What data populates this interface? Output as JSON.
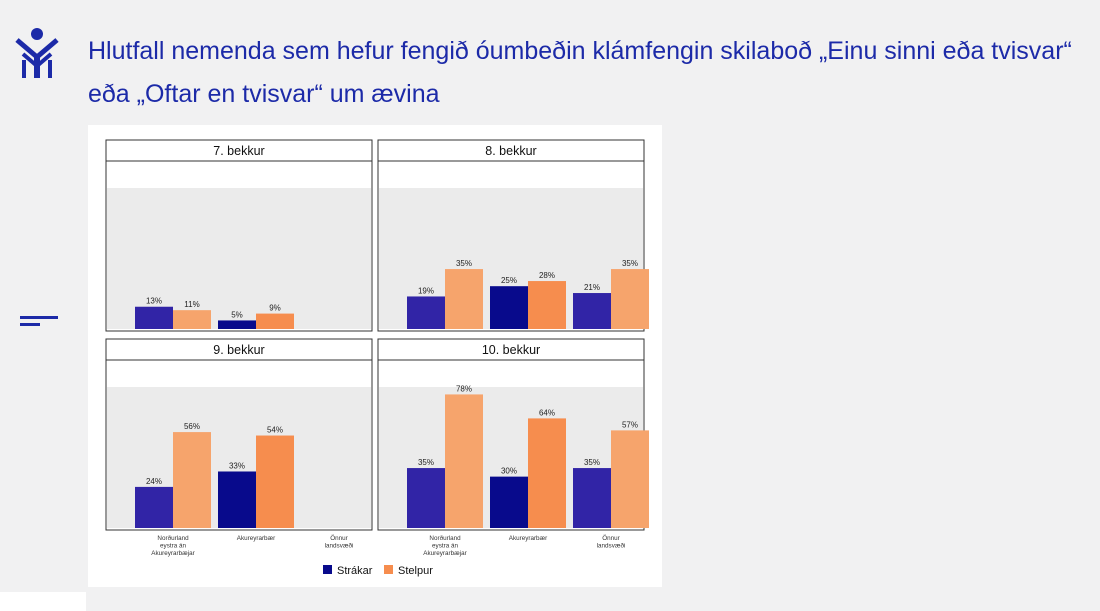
{
  "slide": {
    "title": "Hlutfall nemenda sem hefur fengið óumbeðin klámfengin skilaboð „Einu sinni eða tvisvar“ eða „Oftar en tvisvar“ um ævina"
  },
  "icons": {
    "logo": "person-figure-logo-icon",
    "side_mark": "two-lines-icon"
  },
  "colors": {
    "title": "#1c2aa8",
    "strakar_regional": "#3124a6",
    "strakar_akureyri": "#080a8c",
    "stelpur_regional": "#f6a46c",
    "stelpur_akureyri": "#f68d4e",
    "plot_bg": "#ebebeb"
  },
  "chart_data": {
    "type": "bar",
    "layout": "facet-grid-2x2",
    "categories": [
      "Norðurland eystra án Akureyrarbæjar",
      "Akureyrarbær",
      "Önnur landsvæði"
    ],
    "category_labels": [
      [
        "Norðurland",
        "eystra án",
        "Akureyrarbæjar"
      ],
      [
        "Akureyrarbær"
      ],
      [
        "Önnur",
        "landsvæði"
      ]
    ],
    "ylim": [
      0,
      80
    ],
    "grid": false,
    "legend": {
      "position": "bottom",
      "items": [
        "Strákar",
        "Stelpur"
      ]
    },
    "facets": [
      {
        "title": "7. bekkur",
        "series": [
          {
            "name": "Strákar",
            "values": [
              13,
              5,
              null
            ],
            "labels": [
              "13%",
              "5%",
              ""
            ]
          },
          {
            "name": "Stelpur",
            "values": [
              11,
              9,
              null
            ],
            "labels": [
              "11%",
              "9%",
              ""
            ]
          }
        ]
      },
      {
        "title": "8. bekkur",
        "series": [
          {
            "name": "Strákar",
            "values": [
              19,
              25,
              21
            ],
            "labels": [
              "19%",
              "25%",
              "21%"
            ]
          },
          {
            "name": "Stelpur",
            "values": [
              35,
              28,
              35
            ],
            "labels": [
              "35%",
              "28%",
              "35%"
            ]
          }
        ]
      },
      {
        "title": "9. bekkur",
        "series": [
          {
            "name": "Strákar",
            "values": [
              24,
              33,
              null
            ],
            "labels": [
              "24%",
              "33%",
              ""
            ]
          },
          {
            "name": "Stelpur",
            "values": [
              56,
              54,
              null
            ],
            "labels": [
              "56%",
              "54%",
              ""
            ]
          }
        ]
      },
      {
        "title": "10. bekkur",
        "series": [
          {
            "name": "Strákar",
            "values": [
              35,
              30,
              35
            ],
            "labels": [
              "35%",
              "30%",
              "35%"
            ]
          },
          {
            "name": "Stelpur",
            "values": [
              78,
              64,
              57
            ],
            "labels": [
              "78%",
              "64%",
              "57%"
            ]
          }
        ]
      }
    ]
  }
}
